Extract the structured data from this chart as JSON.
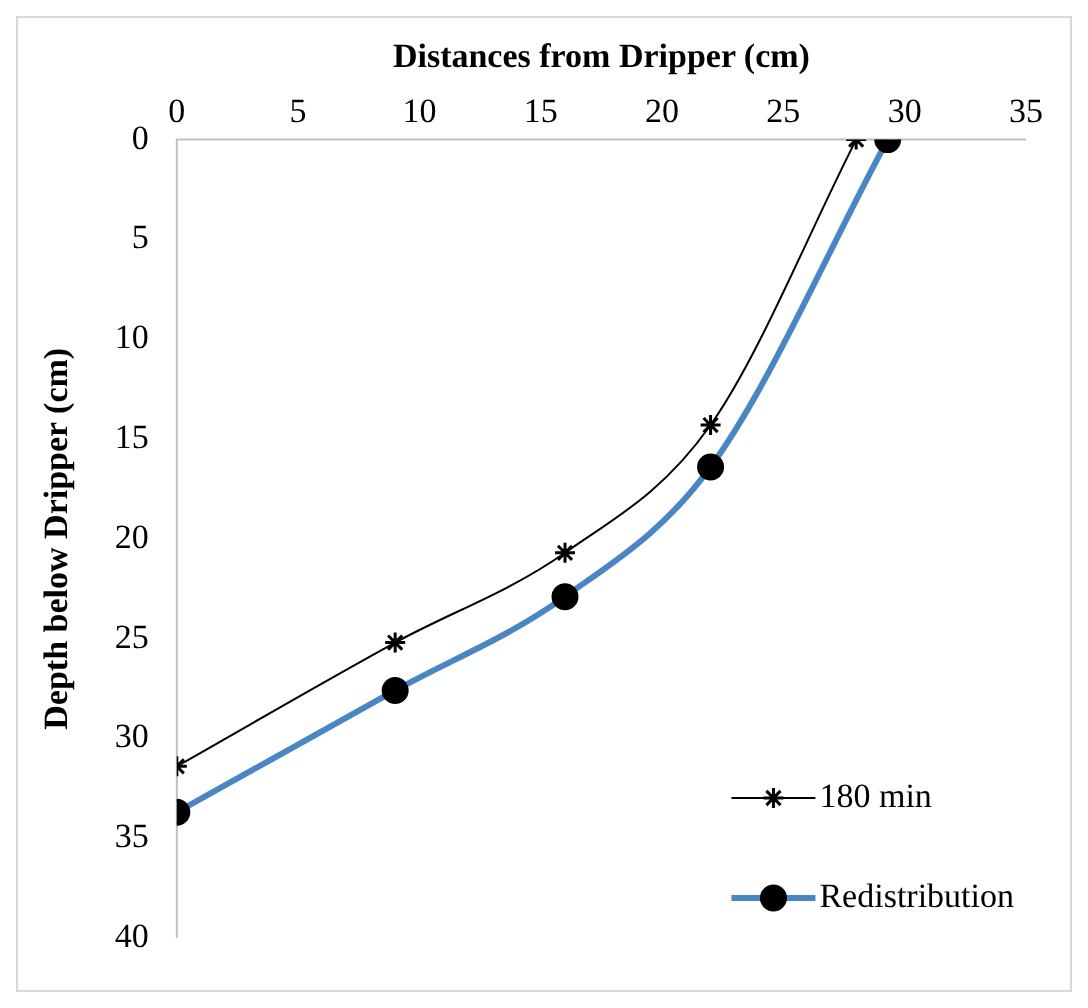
{
  "chart_data": {
    "type": "line",
    "xlabel": "Distances from Dripper (cm)",
    "ylabel": "Depth below Dripper (cm)",
    "xlim": [
      0,
      35
    ],
    "xticks": [
      0,
      5,
      10,
      15,
      20,
      25,
      30,
      35
    ],
    "ylim": [
      40,
      0
    ],
    "yticks": [
      0,
      5,
      10,
      15,
      20,
      25,
      30,
      35,
      40
    ],
    "grid": false,
    "legend": "bottom right",
    "line_style": "solid",
    "series": [
      {
        "name": "180 min",
        "color": "#000000",
        "marker": "cross",
        "x": [
          28,
          22,
          16,
          9,
          0
        ],
        "values": [
          0,
          14.3,
          20.7,
          25.2,
          31.4
        ]
      },
      {
        "name": "Redistribution",
        "color": "#4a86c4",
        "marker": "circle",
        "x": [
          29.3,
          22,
          16,
          9,
          0
        ],
        "values": [
          0,
          16.4,
          22.9,
          27.6,
          33.7
        ]
      }
    ]
  }
}
